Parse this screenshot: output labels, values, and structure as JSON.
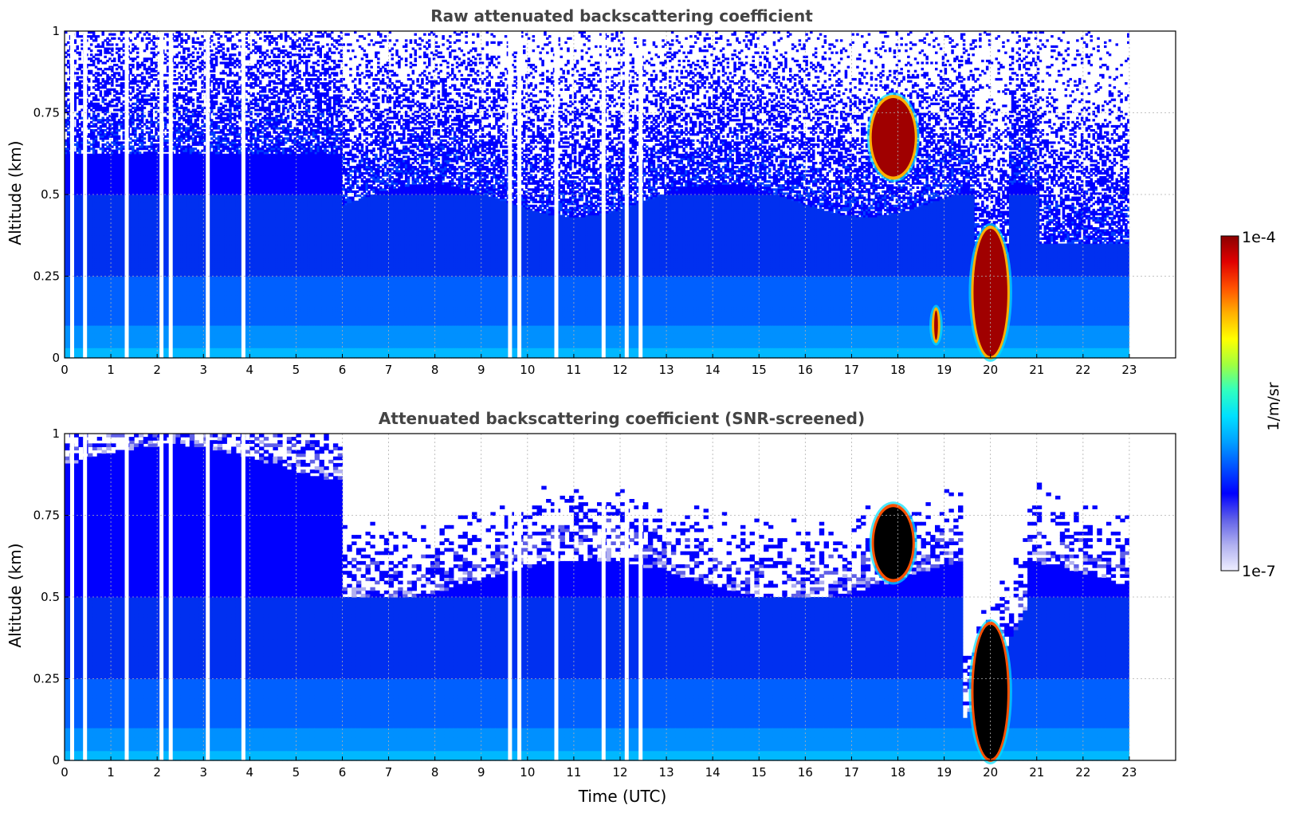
{
  "chart_data": [
    {
      "type": "heatmap",
      "title": "Raw attenuated backscattering coefficient",
      "xlabel": "",
      "ylabel": "Altitude (km)",
      "xlim": [
        0,
        24
      ],
      "ylim": [
        0,
        1
      ],
      "x_ticks": [
        "0",
        "1",
        "2",
        "3",
        "4",
        "5",
        "6",
        "7",
        "8",
        "9",
        "10",
        "11",
        "12",
        "13",
        "14",
        "15",
        "16",
        "17",
        "18",
        "19",
        "20",
        "21",
        "22",
        "23"
      ],
      "y_ticks": [
        "0",
        "0.25",
        "0.5",
        "0.75",
        "1"
      ],
      "grid": true,
      "data_extent_hours": [
        0,
        23
      ],
      "missing_data_hours": [
        0.12,
        0.4,
        1.3,
        2.05,
        2.25,
        3.05,
        3.82,
        9.58,
        9.78,
        10.58,
        11.6,
        12.1,
        12.4
      ],
      "features": [
        {
          "label": "cloud layer",
          "x_range": [
            17.4,
            18.4
          ],
          "y_range": [
            0.55,
            0.8
          ],
          "level": "1e-4"
        },
        {
          "label": "cloud/precipitation",
          "x_range": [
            19.6,
            20.4
          ],
          "y_range": [
            0.0,
            0.4
          ],
          "level": "1e-4"
        },
        {
          "label": "low cloud",
          "x_range": [
            18.75,
            18.9
          ],
          "y_range": [
            0.05,
            0.15
          ],
          "level": "1e-4"
        }
      ]
    },
    {
      "type": "heatmap",
      "title": "Attenuated backscattering coefficient (SNR-screened)",
      "xlabel": "Time (UTC)",
      "ylabel": "Altitude (km)",
      "xlim": [
        0,
        24
      ],
      "ylim": [
        0,
        1
      ],
      "x_ticks": [
        "0",
        "1",
        "2",
        "3",
        "4",
        "5",
        "6",
        "7",
        "8",
        "9",
        "10",
        "11",
        "12",
        "13",
        "14",
        "15",
        "16",
        "17",
        "18",
        "19",
        "20",
        "21",
        "22",
        "23"
      ],
      "y_ticks": [
        "0",
        "0.25",
        "0.5",
        "0.75",
        "1"
      ],
      "grid": true,
      "data_extent_hours": [
        0,
        23
      ],
      "missing_data_hours": [
        0.12,
        0.4,
        1.3,
        2.05,
        2.25,
        3.05,
        3.82,
        9.58,
        9.78,
        10.58,
        11.6,
        12.1,
        12.4
      ],
      "features": [
        {
          "label": "cloud layer (saturated)",
          "x_range": [
            17.45,
            18.35
          ],
          "y_range": [
            0.55,
            0.78
          ],
          "level": "saturated"
        },
        {
          "label": "cloud/precipitation (saturated)",
          "x_range": [
            19.6,
            20.4
          ],
          "y_range": [
            0.0,
            0.42
          ],
          "level": "saturated"
        }
      ]
    }
  ],
  "colorbar": {
    "max_label": "1e-4",
    "min_label": "1e-7",
    "unit": "1/m/sr",
    "colors": [
      "#eeeeff",
      "#b0b0f0",
      "#6060e8",
      "#0000ff",
      "#0050ff",
      "#00a0ff",
      "#00e0ff",
      "#30ffc0",
      "#a0ff40",
      "#ffff00",
      "#ffb000",
      "#ff5000",
      "#e00000",
      "#8b0000"
    ]
  }
}
